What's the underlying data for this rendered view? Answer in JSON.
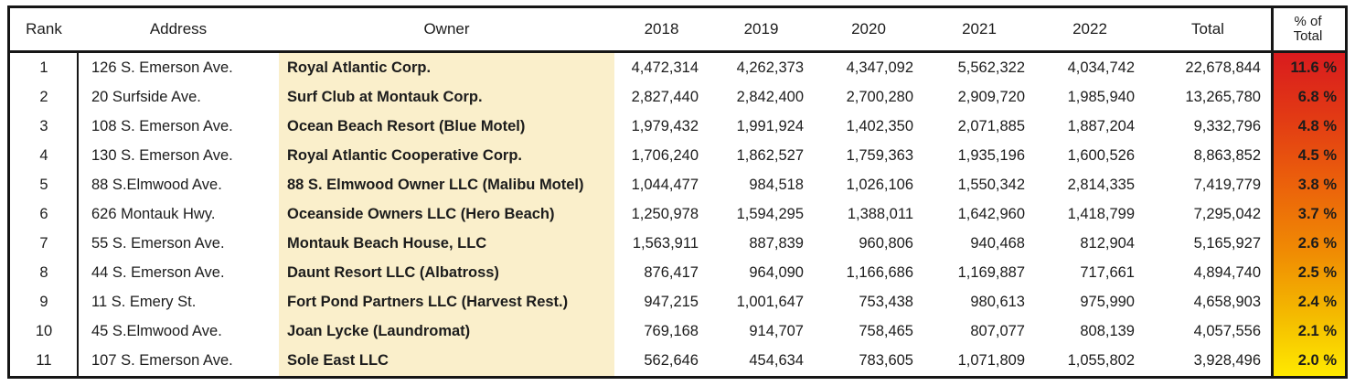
{
  "table": {
    "columns": {
      "rank": "Rank",
      "address": "Address",
      "owner": "Owner",
      "y2018": "2018",
      "y2019": "2019",
      "y2020": "2020",
      "y2021": "2021",
      "y2022": "2022",
      "total": "Total",
      "pct_line1": "% of",
      "pct_line2": "Total"
    },
    "rows": [
      {
        "rank": "1",
        "address": "126 S. Emerson Ave.",
        "owner": "Royal Atlantic Corp.",
        "y2018": "4,472,314",
        "y2019": "4,262,373",
        "y2020": "4,347,092",
        "y2021": "5,562,322",
        "y2022": "4,034,742",
        "total": "22,678,844",
        "pct": "11.6 %"
      },
      {
        "rank": "2",
        "address": "20 Surfside Ave.",
        "owner": "Surf Club at Montauk Corp.",
        "y2018": "2,827,440",
        "y2019": "2,842,400",
        "y2020": "2,700,280",
        "y2021": "2,909,720",
        "y2022": "1,985,940",
        "total": "13,265,780",
        "pct": "6.8 %"
      },
      {
        "rank": "3",
        "address": "108 S. Emerson Ave.",
        "owner": "Ocean Beach Resort (Blue Motel)",
        "y2018": "1,979,432",
        "y2019": "1,991,924",
        "y2020": "1,402,350",
        "y2021": "2,071,885",
        "y2022": "1,887,204",
        "total": "9,332,796",
        "pct": "4.8 %"
      },
      {
        "rank": "4",
        "address": "130 S. Emerson Ave.",
        "owner": "Royal Atlantic Cooperative Corp.",
        "y2018": "1,706,240",
        "y2019": "1,862,527",
        "y2020": "1,759,363",
        "y2021": "1,935,196",
        "y2022": "1,600,526",
        "total": "8,863,852",
        "pct": "4.5 %"
      },
      {
        "rank": "5",
        "address": "88 S.Elmwood Ave.",
        "owner": "88 S. Elmwood Owner LLC (Malibu Motel)",
        "y2018": "1,044,477",
        "y2019": "984,518",
        "y2020": "1,026,106",
        "y2021": "1,550,342",
        "y2022": "2,814,335",
        "total": "7,419,779",
        "pct": "3.8 %"
      },
      {
        "rank": "6",
        "address": "626 Montauk Hwy.",
        "owner": "Oceanside Owners LLC (Hero Beach)",
        "y2018": "1,250,978",
        "y2019": "1,594,295",
        "y2020": "1,388,011",
        "y2021": "1,642,960",
        "y2022": "1,418,799",
        "total": "7,295,042",
        "pct": "3.7 %"
      },
      {
        "rank": "7",
        "address": "55 S. Emerson Ave.",
        "owner": "Montauk Beach House, LLC",
        "y2018": "1,563,911",
        "y2019": "887,839",
        "y2020": "960,806",
        "y2021": "940,468",
        "y2022": "812,904",
        "total": "5,165,927",
        "pct": "2.6 %"
      },
      {
        "rank": "8",
        "address": "44 S. Emerson Ave.",
        "owner": "Daunt Resort LLC (Albatross)",
        "y2018": "876,417",
        "y2019": "964,090",
        "y2020": "1,166,686",
        "y2021": "1,169,887",
        "y2022": "717,661",
        "total": "4,894,740",
        "pct": "2.5 %"
      },
      {
        "rank": "9",
        "address": "11 S. Emery St.",
        "owner": "Fort Pond Partners LLC (Harvest Rest.)",
        "y2018": "947,215",
        "y2019": "1,001,647",
        "y2020": "753,438",
        "y2021": "980,613",
        "y2022": "975,990",
        "total": "4,658,903",
        "pct": "2.4 %"
      },
      {
        "rank": "10",
        "address": "45 S.Elmwood Ave.",
        "owner": "Joan Lycke (Laundromat)",
        "y2018": "769,168",
        "y2019": "914,707",
        "y2020": "758,465",
        "y2021": "807,077",
        "y2022": "808,139",
        "total": "4,057,556",
        "pct": "2.1 %"
      },
      {
        "rank": "11",
        "address": "107 S. Emerson Ave.",
        "owner": "Sole East LLC",
        "y2018": "562,646",
        "y2019": "454,634",
        "y2020": "783,605",
        "y2021": "1,071,809",
        "y2022": "1,055,802",
        "total": "3,928,496",
        "pct": "2.0 %"
      }
    ],
    "colors": {
      "border": "#161616",
      "owner_column_bg": "#FAEFCB",
      "pct_gradient_top": "#D91B1E",
      "pct_gradient_mid": "#F08C03",
      "pct_gradient_bottom": "#FFE900"
    }
  }
}
